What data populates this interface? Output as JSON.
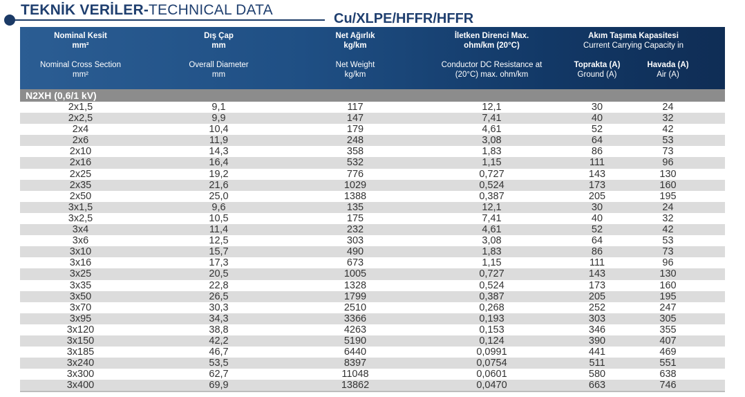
{
  "title": {
    "bold": "TEKNİK VERİLER-",
    "normal": "TECHNICAL DATA"
  },
  "subtitle": "Cu/XLPE/HFFR/HFFR",
  "columns": {
    "c1": {
      "tr": "Nominal Kesit",
      "tr_unit": "mm²",
      "en": "Nominal Cross Section",
      "en_unit": "mm²"
    },
    "c2": {
      "tr": "Dış Çap",
      "tr_unit": "mm",
      "en": "Overall Diameter",
      "en_unit": "mm"
    },
    "c3": {
      "tr": "Net Ağırlık",
      "tr_unit": "kg/km",
      "en": "Net Weight",
      "en_unit": "kg/km"
    },
    "c4": {
      "tr": "İletken Direnci Max.",
      "tr_unit": "ohm/km (20°C)",
      "en": "Conductor DC Resistance at",
      "en_unit": "(20°C) max. ohm/km"
    },
    "c5": {
      "tr": "Akım Taşıma Kapasitesi",
      "en": "Current Carrying Capacity in"
    },
    "c5a": {
      "tr": "Toprakta (A)",
      "en": "Ground (A)"
    },
    "c5b": {
      "tr": "Havada (A)",
      "en": "Air (A)"
    }
  },
  "group_label": "N2XH (0,6/1 kV)",
  "rows": [
    [
      "2x1,5",
      "9,1",
      "117",
      "12,1",
      "30",
      "24"
    ],
    [
      "2x2,5",
      "9,9",
      "147",
      "7,41",
      "40",
      "32"
    ],
    [
      "2x4",
      "10,4",
      "179",
      "4,61",
      "52",
      "42"
    ],
    [
      "2x6",
      "11,9",
      "248",
      "3,08",
      "64",
      "53"
    ],
    [
      "2x10",
      "14,3",
      "358",
      "1,83",
      "86",
      "73"
    ],
    [
      "2x16",
      "16,4",
      "532",
      "1,15",
      "111",
      "96"
    ],
    [
      "2x25",
      "19,2",
      "776",
      "0,727",
      "143",
      "130"
    ],
    [
      "2x35",
      "21,6",
      "1029",
      "0,524",
      "173",
      "160"
    ],
    [
      "2x50",
      "25,0",
      "1388",
      "0,387",
      "205",
      "195"
    ],
    [
      "3x1,5",
      "9,6",
      "135",
      "12,1",
      "30",
      "24"
    ],
    [
      "3x2,5",
      "10,5",
      "175",
      "7,41",
      "40",
      "32"
    ],
    [
      "3x4",
      "11,4",
      "232",
      "4,61",
      "52",
      "42"
    ],
    [
      "3x6",
      "12,5",
      "303",
      "3,08",
      "64",
      "53"
    ],
    [
      "3x10",
      "15,7",
      "490",
      "1,83",
      "86",
      "73"
    ],
    [
      "3x16",
      "17,3",
      "673",
      "1,15",
      "111",
      "96"
    ],
    [
      "3x25",
      "20,5",
      "1005",
      "0,727",
      "143",
      "130"
    ],
    [
      "3x35",
      "22,8",
      "1328",
      "0,524",
      "173",
      "160"
    ],
    [
      "3x50",
      "26,5",
      "1799",
      "0,387",
      "205",
      "195"
    ],
    [
      "3x70",
      "30,3",
      "2510",
      "0,268",
      "252",
      "247"
    ],
    [
      "3x95",
      "34,3",
      "3366",
      "0,193",
      "303",
      "305"
    ],
    [
      "3x120",
      "38,8",
      "4263",
      "0,153",
      "346",
      "355"
    ],
    [
      "3x150",
      "42,2",
      "5190",
      "0,124",
      "390",
      "407"
    ],
    [
      "3x185",
      "46,7",
      "6440",
      "0,0991",
      "441",
      "469"
    ],
    [
      "3x240",
      "53,5",
      "8397",
      "0,0754",
      "511",
      "551"
    ],
    [
      "3x300",
      "62,7",
      "11048",
      "0,0601",
      "580",
      "638"
    ],
    [
      "3x400",
      "69,9",
      "13862",
      "0,0470",
      "663",
      "746"
    ]
  ]
}
